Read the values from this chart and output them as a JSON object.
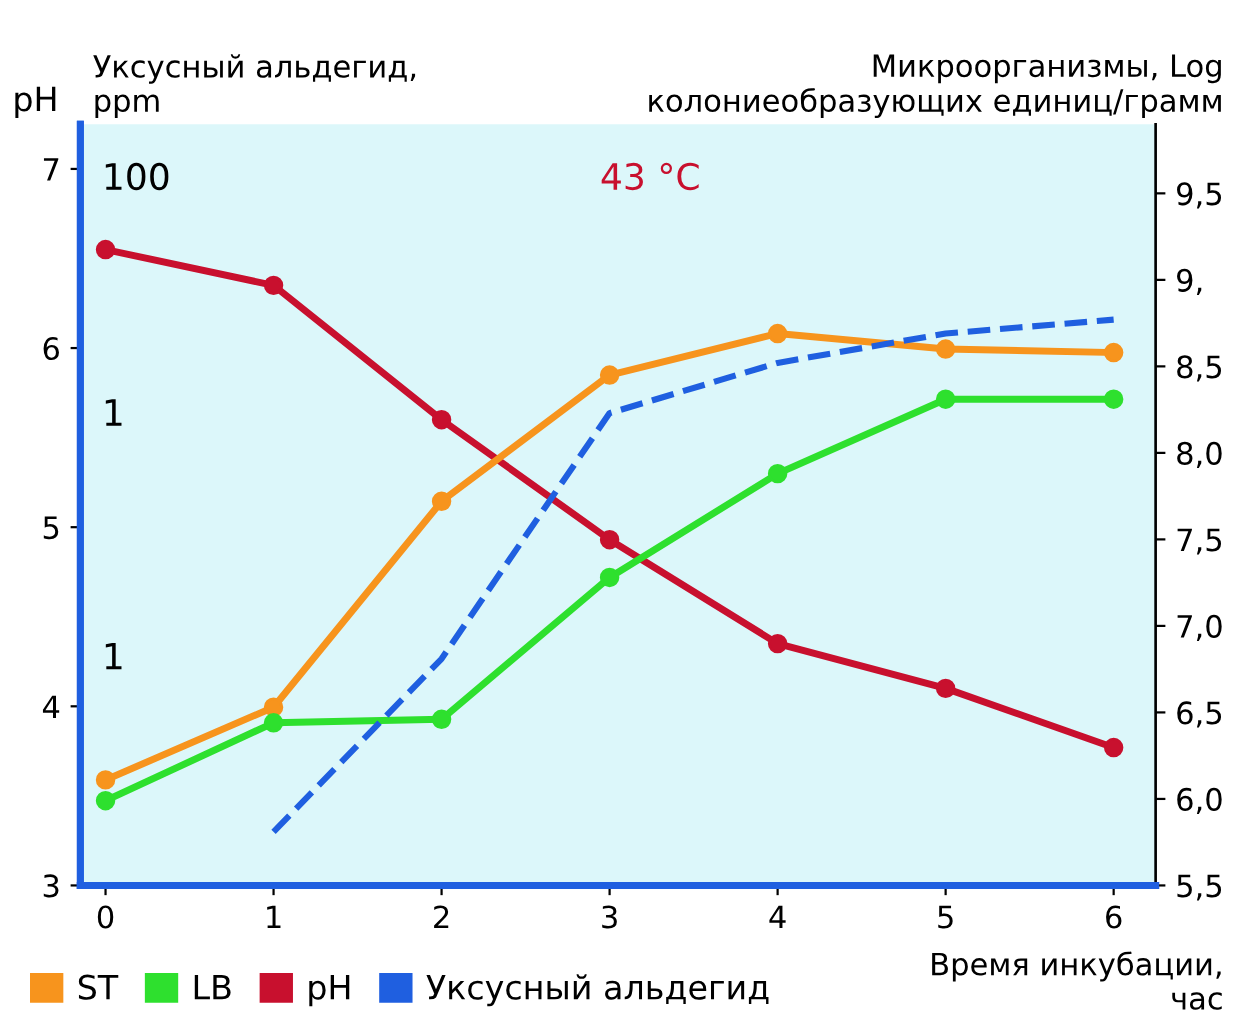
{
  "chart_data": {
    "type": "line",
    "ylabel": "pH",
    "y2label": "Микроорганизмы, Log\nколониеобразующих единиц/грамм",
    "xlabel": "Время инкубации,\nчас",
    "annotations": [
      "Уксусный альдегид,\nppm",
      "100",
      "1",
      "1",
      "43 °C"
    ],
    "x": [
      0,
      1,
      2,
      3,
      4,
      5,
      6
    ],
    "xlim": [
      -0.15,
      6.25
    ],
    "xticks": [
      0,
      1,
      2,
      3,
      4,
      5,
      6
    ],
    "ylim": [
      3,
      7.25
    ],
    "yticks": [
      3,
      4,
      5,
      6,
      7
    ],
    "y2lim": [
      5.5,
      9.9
    ],
    "y2ticks": [
      {
        "value": 5.5,
        "label": "5,5"
      },
      {
        "value": 6.0,
        "label": "6,0"
      },
      {
        "value": 6.5,
        "label": "6,5"
      },
      {
        "value": 7.0,
        "label": "7,0"
      },
      {
        "value": 7.5,
        "label": "7,5"
      },
      {
        "value": 8.0,
        "label": "8,0"
      },
      {
        "value": 8.5,
        "label": "8,5"
      },
      {
        "value": 9.0,
        "label": "9,"
      },
      {
        "value": 9.5,
        "label": "9,5"
      }
    ],
    "grid": false,
    "legend": "bottom",
    "series": [
      {
        "name": "ST",
        "color": "#f7941d",
        "axis": "y2",
        "marker": "circle",
        "line_style": "solid",
        "values": [
          6.11,
          6.53,
          7.72,
          8.45,
          8.69,
          8.6,
          8.58
        ]
      },
      {
        "name": "LB",
        "color": "#2ee02e",
        "axis": "y2",
        "marker": "circle",
        "line_style": "solid",
        "values": [
          5.99,
          6.44,
          6.46,
          7.28,
          7.88,
          8.31,
          8.31
        ]
      },
      {
        "name": "pH",
        "color": "#c8102e",
        "marker": "circle",
        "line_style": "solid",
        "values": [
          6.55,
          6.35,
          5.6,
          4.93,
          4.35,
          4.1,
          3.77
        ]
      },
      {
        "name": "Уксусный альдегид",
        "color": "#1f5fe0",
        "axis": "y2",
        "marker": "none",
        "line_style": "dashed",
        "values": [
          null,
          5.81,
          6.81,
          8.23,
          8.52,
          8.69,
          8.77
        ]
      }
    ]
  }
}
